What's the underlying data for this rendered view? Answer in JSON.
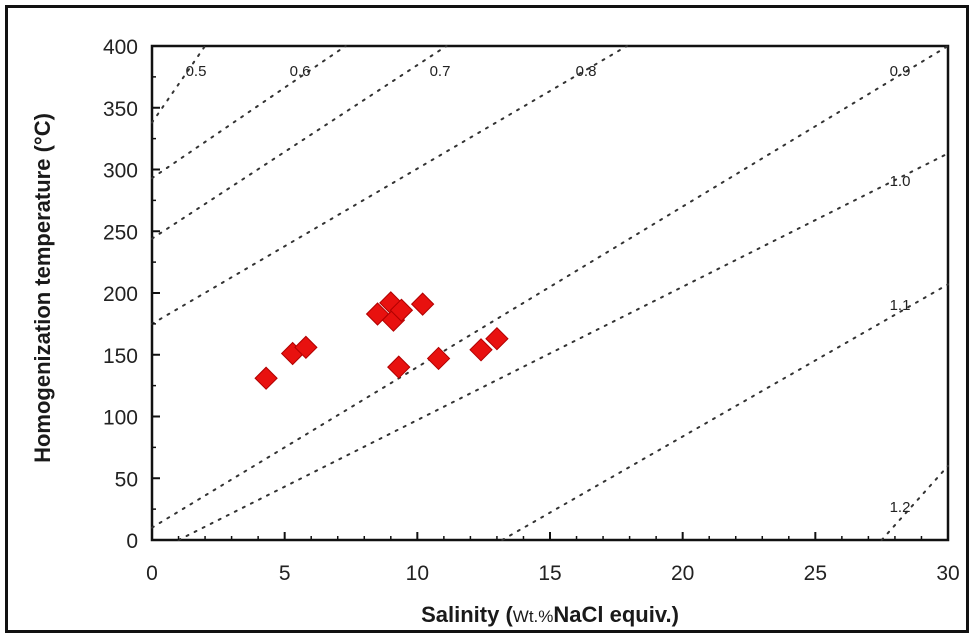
{
  "chart_data": {
    "type": "scatter",
    "xlabel_main": "Salinity",
    "xlabel_unit": "Wt.%",
    "xlabel_rest": "NaCl equiv.)",
    "ylabel": "Homogenization temperature (°C)",
    "xlim": [
      0,
      30
    ],
    "ylim": [
      0,
      400
    ],
    "xticks": [
      0,
      5,
      10,
      15,
      20,
      25,
      30
    ],
    "yticks": [
      0,
      50,
      100,
      150,
      200,
      250,
      300,
      350,
      400
    ],
    "grid": false,
    "marker_color": "#e8110f",
    "points": [
      {
        "x": 4.3,
        "y": 131
      },
      {
        "x": 5.3,
        "y": 151
      },
      {
        "x": 5.8,
        "y": 156
      },
      {
        "x": 8.5,
        "y": 183
      },
      {
        "x": 9.0,
        "y": 192
      },
      {
        "x": 9.1,
        "y": 178
      },
      {
        "x": 9.4,
        "y": 186
      },
      {
        "x": 10.2,
        "y": 191
      },
      {
        "x": 9.3,
        "y": 140
      },
      {
        "x": 10.8,
        "y": 147
      },
      {
        "x": 12.4,
        "y": 154
      },
      {
        "x": 13.0,
        "y": 163
      }
    ],
    "density_isolines": [
      {
        "label": "0.5",
        "x1": 0,
        "y1": 338,
        "x2": 2.0,
        "y2": 400
      },
      {
        "label": "0.6",
        "x1": 0,
        "y1": 293,
        "x2": 7.3,
        "y2": 400
      },
      {
        "label": "0.7",
        "x1": 0,
        "y1": 244,
        "x2": 11.1,
        "y2": 400
      },
      {
        "label": "0.8",
        "x1": 0,
        "y1": 175,
        "x2": 17.9,
        "y2": 400
      },
      {
        "label": "0.9",
        "x1": 0,
        "y1": 10,
        "x2": 30,
        "y2": 400
      },
      {
        "label": "1.0",
        "x1": 1.0,
        "y1": 0,
        "x2": 30,
        "y2": 313
      },
      {
        "label": "1.1",
        "x1": 13.2,
        "y1": 0,
        "x2": 30,
        "y2": 207
      },
      {
        "label": "1.2",
        "x1": 27.5,
        "y1": 0,
        "x2": 30,
        "y2": 60
      }
    ]
  }
}
